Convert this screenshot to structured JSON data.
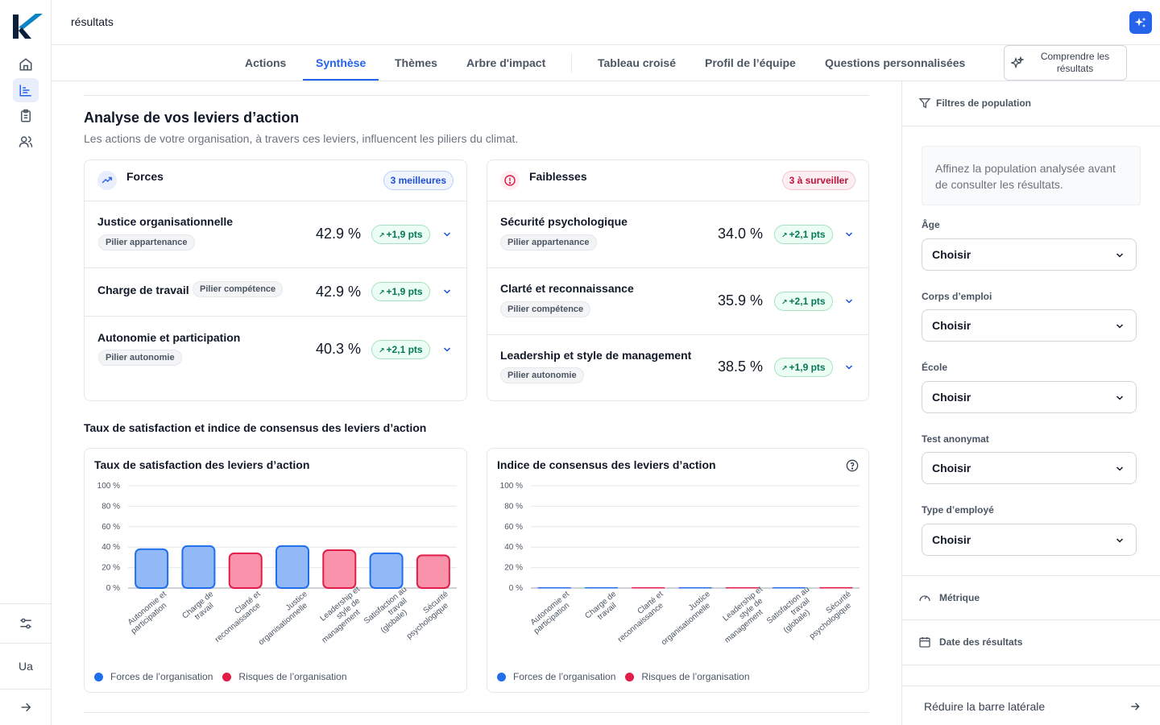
{
  "app": {
    "title": "résultats"
  },
  "rail": {
    "avatar": "Ua"
  },
  "tabs": [
    {
      "label": "Actions"
    },
    {
      "label": "Synthèse"
    },
    {
      "label": "Thèmes"
    },
    {
      "label": "Arbre d'impact"
    },
    {
      "label": "Tableau croisé"
    },
    {
      "label": "Profil de l’équipe"
    },
    {
      "label": "Questions personnalisées"
    }
  ],
  "comprendre": {
    "label": "Comprendre les résultats"
  },
  "header": {
    "title": "Analyse de vos leviers d’action",
    "subtitle": "Les actions de votre organisation, à travers ces leviers, influencent les piliers du climat."
  },
  "forces": {
    "title": "Forces",
    "badge": "3 meilleures",
    "items": [
      {
        "name": "Justice organisationnelle",
        "pillar": "Pilier appartenance",
        "pct": "42.9 %",
        "delta": "+1,9 pts"
      },
      {
        "name": "Charge de travail",
        "pillar": "Pilier compétence",
        "pct": "42.9 %",
        "delta": "+1,9 pts"
      },
      {
        "name": "Autonomie et participation",
        "pillar": "Pilier autonomie",
        "pct": "40.3 %",
        "delta": "+2,1 pts"
      }
    ]
  },
  "faiblesses": {
    "title": "Faiblesses",
    "badge": "3 à surveiller",
    "items": [
      {
        "name": "Sécurité psychologique",
        "pillar": "Pilier appartenance",
        "pct": "34.0 %",
        "delta": "+2,1 pts"
      },
      {
        "name": "Clarté et reconnaissance",
        "pillar": "Pilier compétence",
        "pct": "35.9 %",
        "delta": "+2,1 pts"
      },
      {
        "name": "Leadership et style de management",
        "pillar": "Pilier autonomie",
        "pct": "38.5 %",
        "delta": "+1,9 pts"
      }
    ]
  },
  "charts_section": {
    "title": "Taux de satisfaction et indice de consensus des leviers d’action"
  },
  "legend": {
    "forces": "Forces de l’organisation",
    "risques": "Risques de l’organisation"
  },
  "colors": {
    "forces": "#1f6feb",
    "risques": "#e11d48",
    "forces_fill": "#93b8f6",
    "risques_fill": "#f993ab",
    "accent": "#2563eb"
  },
  "chart_data": [
    {
      "type": "bar",
      "title": "Taux de satisfaction des leviers d’action",
      "categories": [
        [
          "Autonomie et",
          "participation"
        ],
        [
          "Charge de",
          "travail"
        ],
        [
          "Clarté et",
          "reconnaissance"
        ],
        [
          "Justice",
          "organisationnelle"
        ],
        [
          "Leadership et",
          "style de",
          "management"
        ],
        [
          "Satisfaction au",
          "travail",
          "(globale)"
        ],
        [
          "Sécurité",
          "psychologique"
        ]
      ],
      "values": [
        38,
        41,
        34,
        41,
        37,
        34,
        32
      ],
      "groups": [
        "forces",
        "forces",
        "risques",
        "forces",
        "risques",
        "forces",
        "risques"
      ],
      "yticks": [
        "100 %",
        "80 %",
        "60 %",
        "40 %",
        "20 %",
        "0 %"
      ],
      "ylim": [
        0,
        100
      ]
    },
    {
      "type": "bar",
      "title": "Indice de consensus des leviers d’action",
      "categories": [
        [
          "Autonomie et",
          "participation"
        ],
        [
          "Charge de",
          "travail"
        ],
        [
          "Clarté et",
          "reconnaissance"
        ],
        [
          "Justice",
          "organisationnelle"
        ],
        [
          "Leadership et",
          "style de",
          "management"
        ],
        [
          "Satisfaction au",
          "travail",
          "(globale)"
        ],
        [
          "Sécurité",
          "psychologique"
        ]
      ],
      "values": [
        0,
        0,
        0,
        0,
        0,
        0,
        0.5
      ],
      "groups": [
        "forces",
        "forces",
        "risques",
        "forces",
        "risques",
        "forces",
        "risques"
      ],
      "yticks": [
        "100 %",
        "80 %",
        "60 %",
        "40 %",
        "20 %",
        "0 %"
      ],
      "ylim": [
        0,
        100
      ]
    }
  ],
  "sidebar": {
    "filters_title": "Filtres de population",
    "info": "Affinez la population analysée avant de consulter les résultats.",
    "filters": [
      {
        "label": "Âge",
        "value": "Choisir"
      },
      {
        "label": "Corps d’emploi",
        "value": "Choisir"
      },
      {
        "label": "École",
        "value": "Choisir"
      },
      {
        "label": "Test anonymat",
        "value": "Choisir"
      },
      {
        "label": "Type d’employé",
        "value": "Choisir"
      }
    ],
    "metric": "Métrique",
    "date": "Date des résultats",
    "reduce": "Réduire la barre latérale"
  }
}
